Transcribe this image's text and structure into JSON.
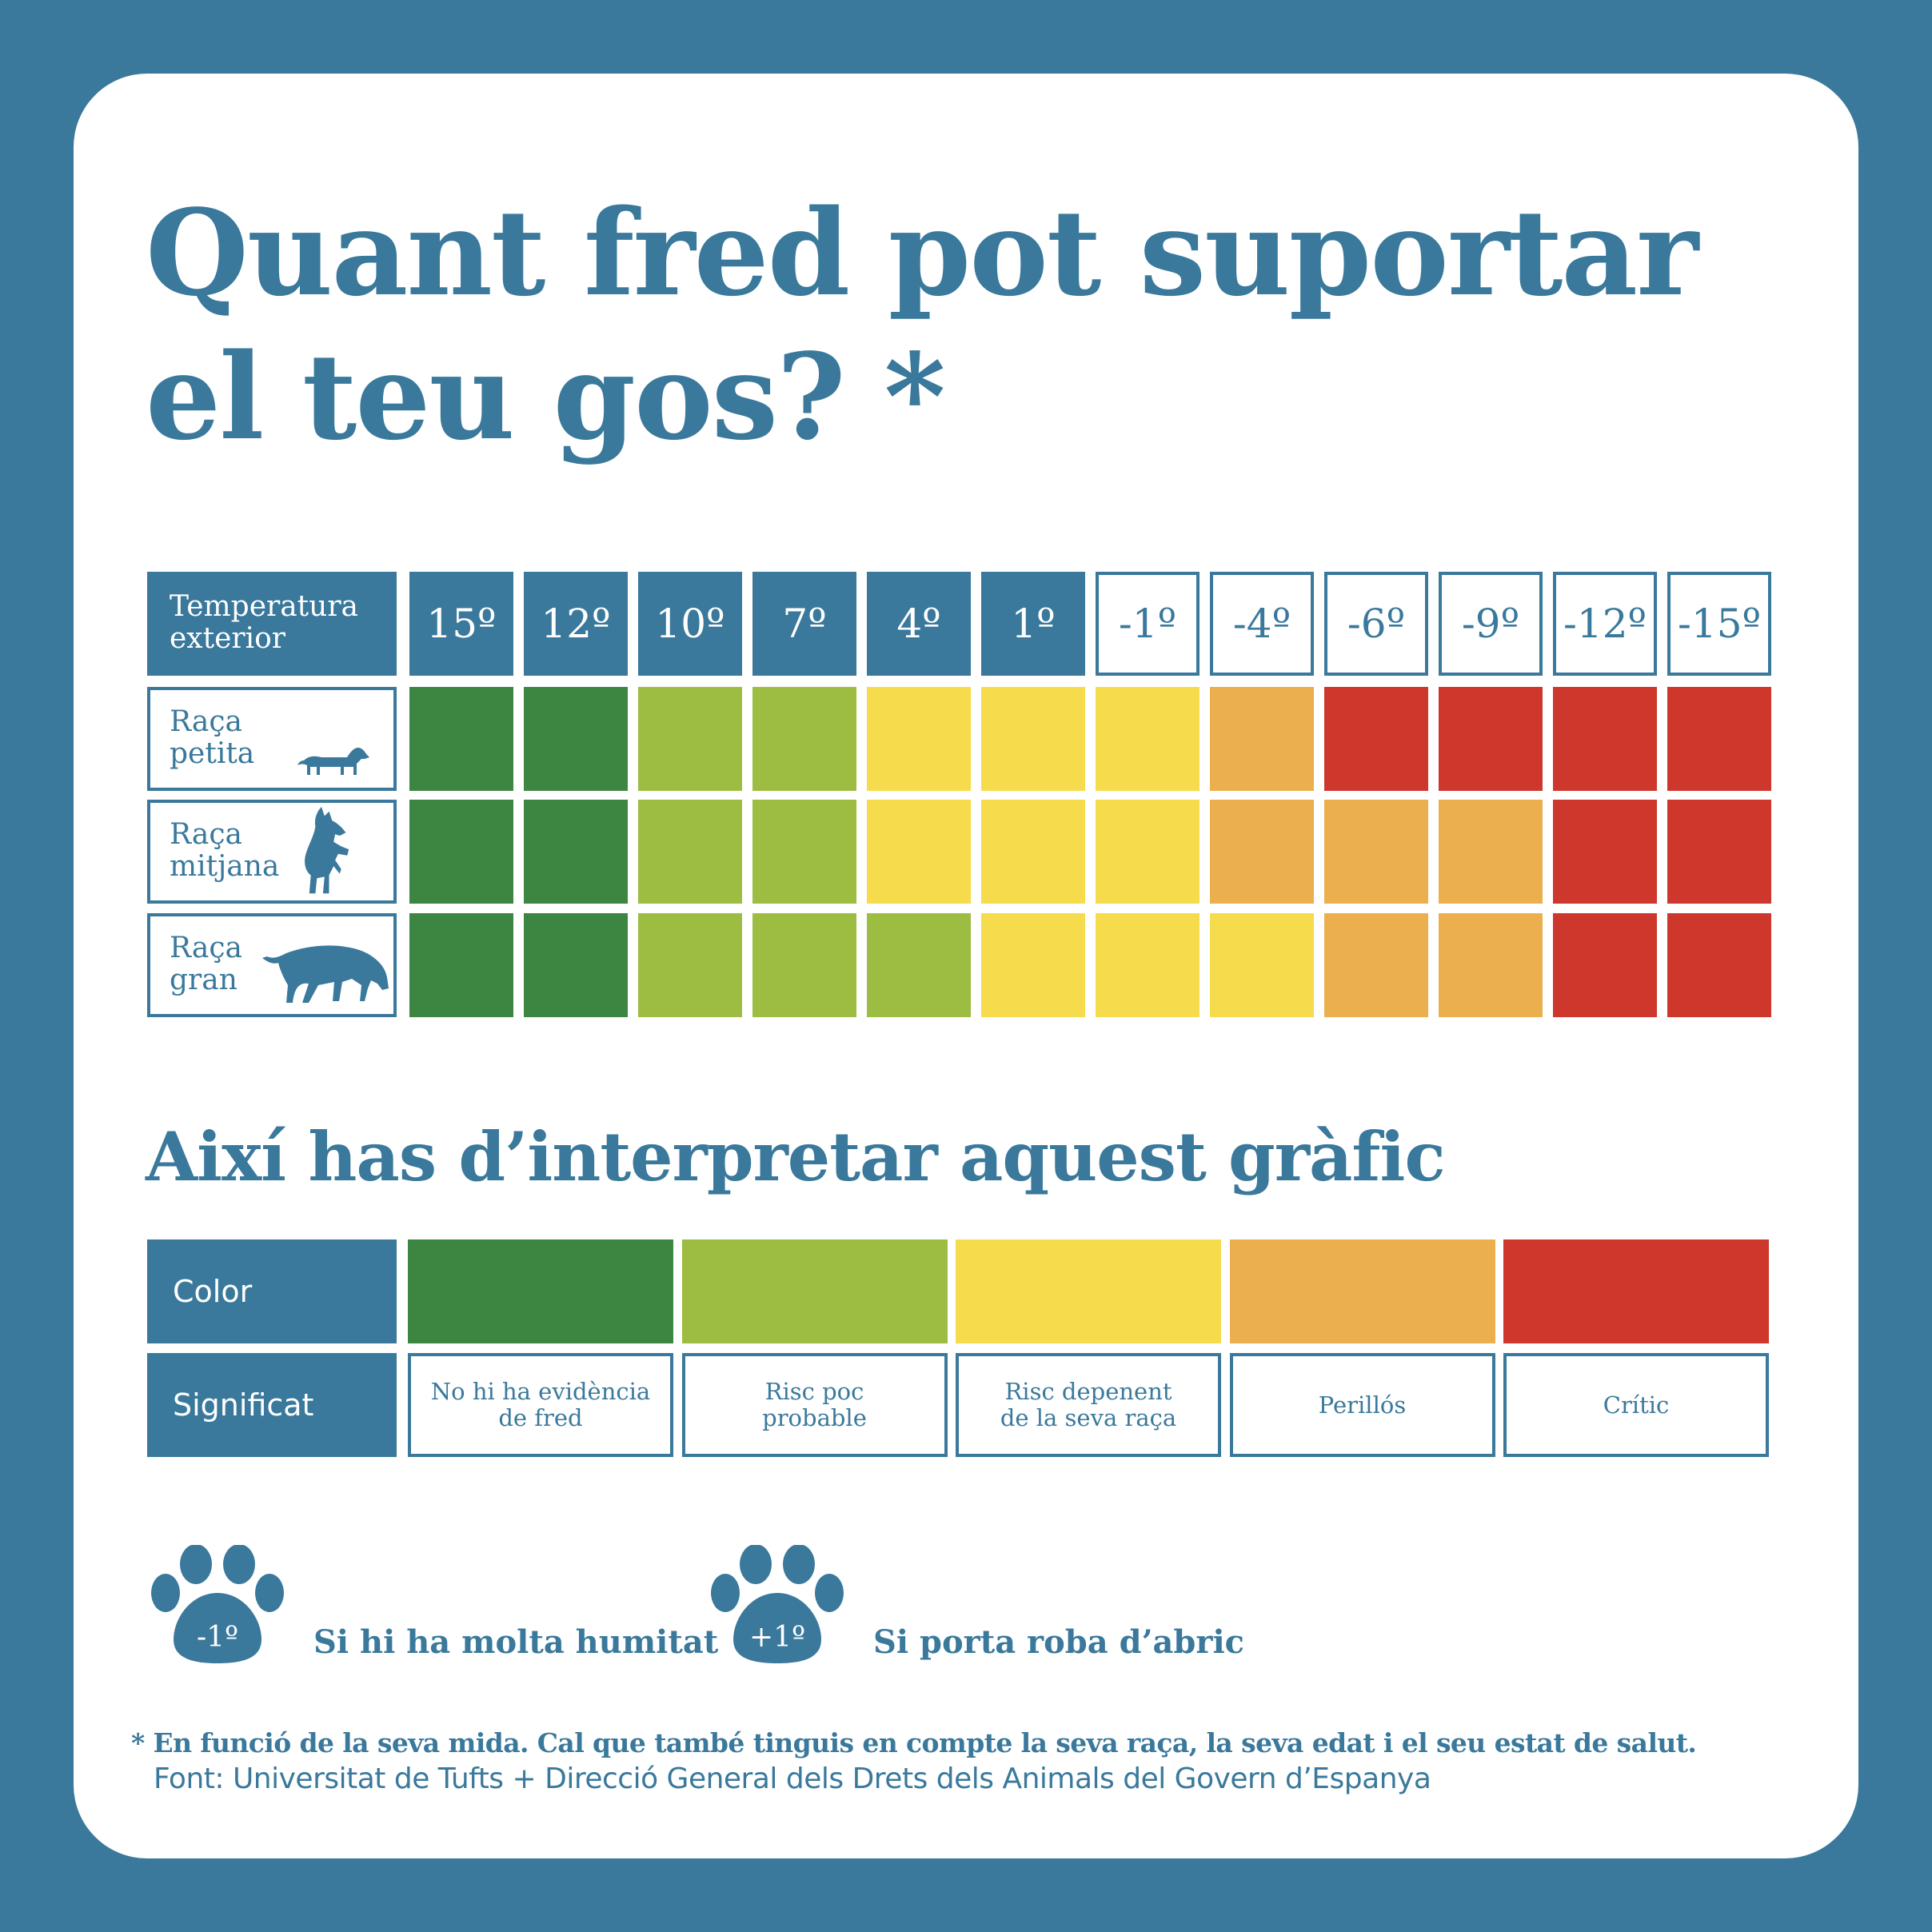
{
  "title": {
    "line1": "Quant fred pot suportar",
    "line2": "el teu gos? *"
  },
  "temperature_header": {
    "label": "Temperatura\nexterior",
    "values": [
      "15º",
      "12º",
      "10º",
      "7º",
      "4º",
      "1º",
      "-1º",
      "-4º",
      "-6º",
      "-9º",
      "-12º",
      "-15º"
    ]
  },
  "rows": [
    {
      "label": "Raça\npetita",
      "icon": "dachshund-icon",
      "levels": [
        1,
        1,
        2,
        2,
        3,
        3,
        3,
        4,
        5,
        5,
        5,
        5
      ]
    },
    {
      "label": "Raça\nmitjana",
      "icon": "schnauzer-icon",
      "levels": [
        1,
        1,
        2,
        2,
        3,
        3,
        3,
        4,
        4,
        4,
        5,
        5
      ]
    },
    {
      "label": "Raça\ngran",
      "icon": "large-dog-icon",
      "levels": [
        1,
        1,
        2,
        2,
        2,
        3,
        3,
        3,
        4,
        4,
        5,
        5
      ]
    }
  ],
  "colors": {
    "1": "#3d8641",
    "2": "#9dbd42",
    "3": "#f6dc4c",
    "4": "#ebb04d",
    "5": "#cd372c",
    "brand": "#3a799c"
  },
  "legend_title": "Així has d’interpretar aquest gràfic",
  "legend": {
    "color_label": "Color",
    "meaning_label": "Significat",
    "items": [
      {
        "level": 1,
        "text": "No hi ha evidència\nde fred"
      },
      {
        "level": 2,
        "text": "Risc poc\nprobable"
      },
      {
        "level": 3,
        "text": "Risc depenent\nde la seva raça"
      },
      {
        "level": 4,
        "text": "Perillós"
      },
      {
        "level": 5,
        "text": "Crític"
      }
    ]
  },
  "adjustments": [
    {
      "badge": "-1º",
      "text": "Si hi ha molta humitat",
      "icon": "paw-icon"
    },
    {
      "badge": "+1º",
      "text": "Si porta roba d’abric",
      "icon": "paw-icon"
    }
  ],
  "footnote": "* En funció de la seva mida. Cal que també tinguis en compte la seva raça, la seva edat i el seu estat de salut.",
  "source": "Font: Universitat de Tufts + Direcció General dels Drets dels Animals del Govern d’Espanya"
}
